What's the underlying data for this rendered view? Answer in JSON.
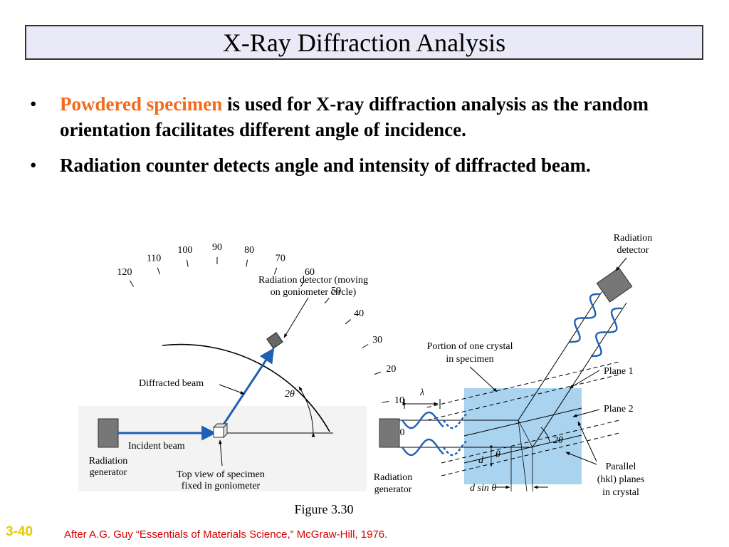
{
  "slide": {
    "title": "X-Ray Diffraction Analysis",
    "bullets": [
      {
        "highlight": "Powdered specimen",
        "text": " is used for X-ray diffraction analysis as the random orientation facilitates different angle of incidence."
      },
      {
        "highlight": "",
        "text": " Radiation counter detects angle and intensity of diffracted beam."
      }
    ],
    "bullet_symbol": "•",
    "slide_number": "3-40",
    "citation": "After A.G. Guy “Essentials of Materials Science,” McGraw-Hill, 1976.",
    "colors": {
      "highlight": "#f26a1b",
      "title_bg": "#e9e9f7",
      "beam": "#1f5fb5",
      "crystal": "#a9d3ef",
      "citation": "#d40000",
      "slide_number": "#e8c800"
    }
  },
  "figure": {
    "caption": "Figure 3.30",
    "left": {
      "label_detector_1": "Radiation detector (moving",
      "label_detector_2": "on goniometer circle)",
      "label_diffracted": "Diffracted beam",
      "label_incident": "Incident beam",
      "label_generator_1": "Radiation",
      "label_generator_2": "generator",
      "label_specimen_1": "Top view of specimen",
      "label_specimen_2": "fixed in goniometer",
      "angle_label": "2θ",
      "scale": [
        "0",
        "10",
        "20",
        "30",
        "40",
        "50",
        "60",
        "70",
        "80",
        "90",
        "100",
        "110",
        "120"
      ]
    },
    "right": {
      "label_detector_1": "Radiation",
      "label_detector_2": "detector",
      "label_crystal_1": "Portion of one crystal",
      "label_crystal_2": "in specimen",
      "label_plane1": "Plane 1",
      "label_plane2": "Plane 2",
      "label_lambda": "λ",
      "label_2theta": "2θ",
      "label_d": "d",
      "label_theta": "θ",
      "label_dsin": "d sin θ",
      "label_parallel_1": "Parallel",
      "label_parallel_2": "(hkl) planes",
      "label_parallel_3": "in crystal",
      "label_generator_1": "Radiation",
      "label_generator_2": "generator"
    }
  }
}
